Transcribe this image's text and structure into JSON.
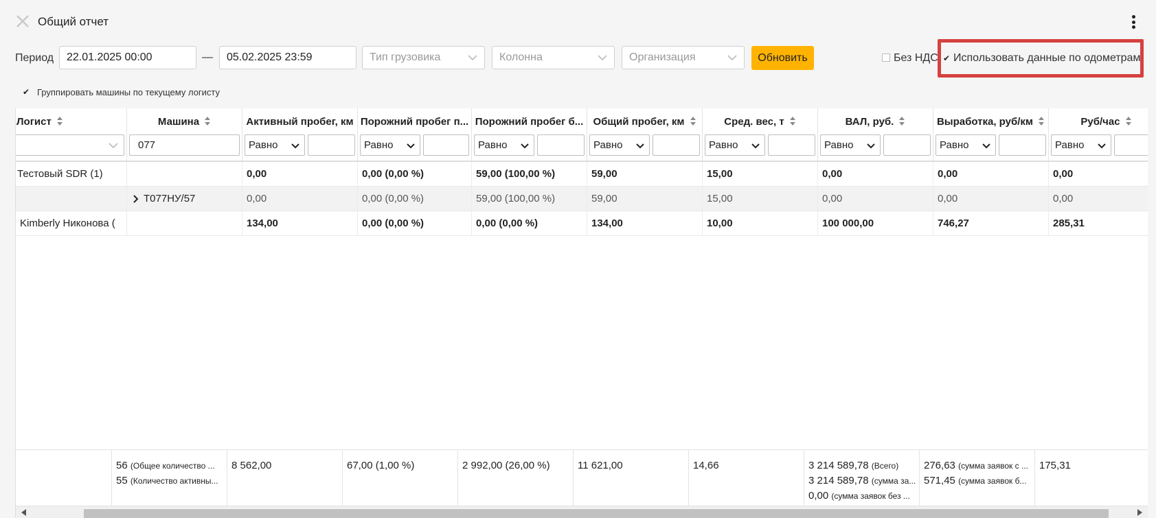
{
  "window": {
    "title": "Общий отчет"
  },
  "filters": {
    "period_label": "Период",
    "date_from": "22.01.2025 00:00",
    "date_separator": "—",
    "date_to": "05.02.2025 23:59",
    "truck_type_placeholder": "Тип грузовика",
    "column_placeholder": "Колонна",
    "organization_placeholder": "Организация",
    "refresh_label": "Обновить",
    "no_vat_label": "Без НДС",
    "no_vat_checked": false,
    "odometer_label": "Использовать данные по одометрам",
    "odometer_checked": true,
    "group_label": "Группировать машины по текущему логисту",
    "group_checked": true
  },
  "accent_colors": {
    "refresh": "#ffb300",
    "highlight": "#d6413f"
  },
  "columns": [
    {
      "label": "Логист",
      "filter": "dropdown"
    },
    {
      "label": "Машина",
      "filter": "text",
      "value": "077"
    },
    {
      "label": "Активный пробег, км",
      "op": "Равно"
    },
    {
      "label": "Порожний пробег п...",
      "op": "Равно"
    },
    {
      "label": "Порожний пробег б...",
      "op": "Равно"
    },
    {
      "label": "Общий пробег, км",
      "op": "Равно"
    },
    {
      "label": "Сред. вес, т",
      "op": "Равно"
    },
    {
      "label": "ВАЛ, руб.",
      "op": "Равно"
    },
    {
      "label": "Выработка, руб/км",
      "op": "Равно"
    },
    {
      "label": "Руб/час",
      "op": "Равно"
    }
  ],
  "rows": [
    {
      "cells": [
        "Тестовый SDR (1)",
        "",
        "0,00",
        "0,00 (0,00 %)",
        "59,00 (100,00 %)",
        "59,00",
        "15,00",
        "0,00",
        "0,00",
        "0,00"
      ],
      "bold": true
    },
    {
      "cells": [
        "",
        "Т077НУ/57",
        "0,00",
        "0,00 (0,00 %)",
        "59,00 (100,00 %)",
        "59,00",
        "15,00",
        "0,00",
        "0,00",
        "0,00"
      ],
      "bold": false
    },
    {
      "cells": [
        "Kimberly Никонова (",
        "",
        "134,00",
        "0,00 (0,00 %)",
        "0,00 (0,00 %)",
        "134,00",
        "10,00",
        "100 000,00",
        "746,27",
        "285,31"
      ],
      "bold": true
    }
  ],
  "footer": {
    "machines_line1_value": "56",
    "machines_line1_note": "(Общее количество ...",
    "machines_line2_value": "55",
    "machines_line2_note": "(Количество активны...",
    "active": "8 562,00",
    "empty_p": "67,00 (1,00 %)",
    "empty_b": "2 992,00 (26,00 %)",
    "total": "11 621,00",
    "weight": "14,66",
    "val_line1_value": "3 214 589,78",
    "val_line1_note": "(Всего)",
    "val_line2_value": "3 214 589,78",
    "val_line2_note": "(сумма за...",
    "val_line3_value": "0,00",
    "val_line3_note": "(сумма заявок без ...",
    "output_line1_value": "276,63",
    "output_line1_note": "(сумма заявок с ...",
    "output_line2_value": "571,45",
    "output_line2_note": "(сумма заявок б...",
    "rub_hour": "175,31"
  }
}
